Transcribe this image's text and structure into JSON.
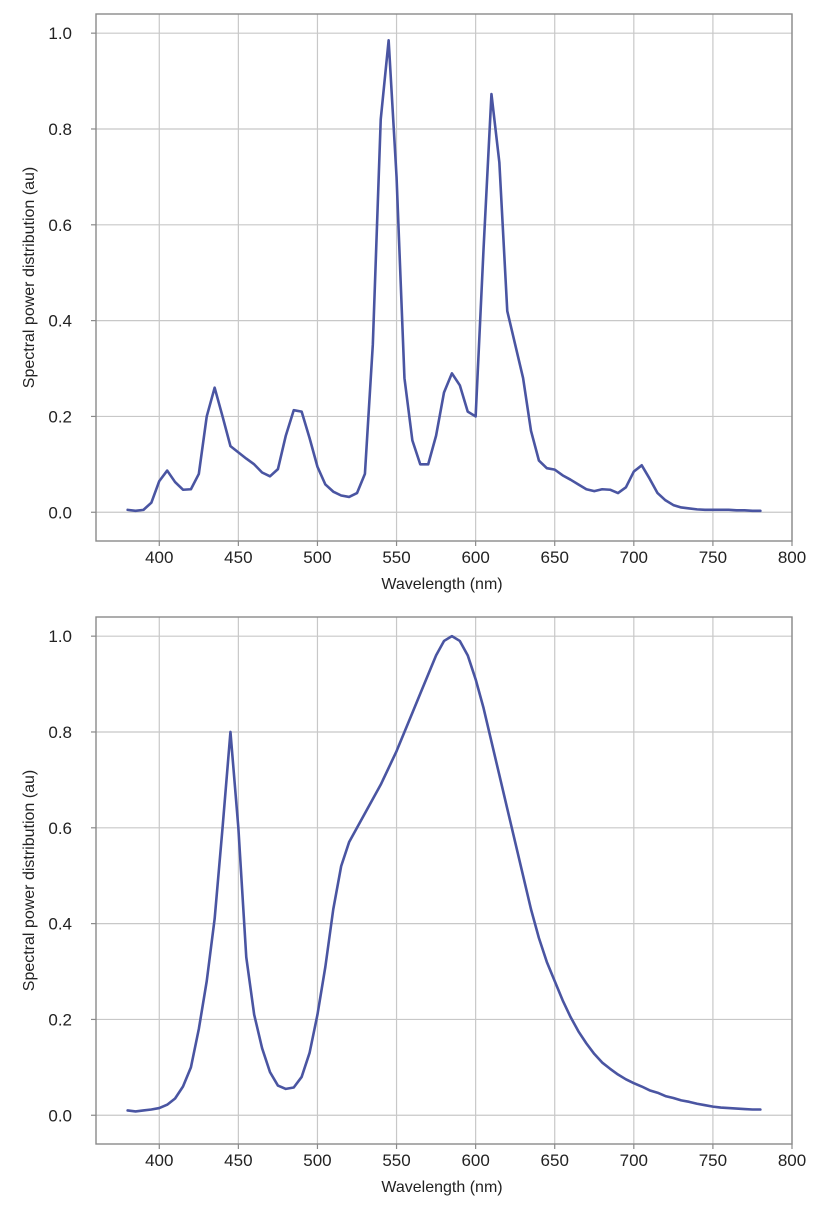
{
  "chart_data": [
    {
      "type": "line",
      "xlabel": "Wavelength (nm)",
      "ylabel": "Spectral power distribution (au)",
      "xlim": [
        360,
        800
      ],
      "ylim": [
        -0.06,
        1.04
      ],
      "xticks": [
        "400",
        "450",
        "500",
        "550",
        "600",
        "650",
        "700",
        "750",
        "800"
      ],
      "yticks": [
        "0.0",
        "0.2",
        "0.4",
        "0.6",
        "0.8",
        "1.0"
      ],
      "grid": true,
      "line_color": "#4a55a2",
      "series": [
        {
          "x": [
            380,
            385,
            390,
            395,
            400,
            405,
            410,
            415,
            420,
            425,
            430,
            435,
            440,
            445,
            450,
            455,
            460,
            465,
            470,
            475,
            480,
            485,
            490,
            495,
            500,
            505,
            510,
            515,
            520,
            525,
            530,
            535,
            540,
            545,
            550,
            555,
            560,
            565,
            570,
            575,
            580,
            585,
            590,
            595,
            600,
            605,
            610,
            615,
            620,
            625,
            630,
            635,
            640,
            645,
            650,
            655,
            660,
            665,
            670,
            675,
            680,
            685,
            690,
            695,
            700,
            705,
            710,
            715,
            720,
            725,
            730,
            735,
            740,
            745,
            750,
            755,
            760,
            765,
            770,
            775,
            780
          ],
          "y": [
            0.005,
            0.003,
            0.005,
            0.02,
            0.065,
            0.087,
            0.063,
            0.047,
            0.048,
            0.08,
            0.2,
            0.26,
            0.2,
            0.138,
            0.125,
            0.112,
            0.1,
            0.083,
            0.075,
            0.09,
            0.16,
            0.213,
            0.21,
            0.155,
            0.095,
            0.058,
            0.043,
            0.035,
            0.032,
            0.04,
            0.08,
            0.35,
            0.82,
            0.985,
            0.7,
            0.28,
            0.15,
            0.1,
            0.1,
            0.16,
            0.25,
            0.29,
            0.265,
            0.21,
            0.2,
            0.55,
            0.873,
            0.73,
            0.42,
            0.35,
            0.28,
            0.17,
            0.108,
            0.092,
            0.089,
            0.077,
            0.068,
            0.058,
            0.048,
            0.044,
            0.048,
            0.047,
            0.04,
            0.052,
            0.085,
            0.098,
            0.07,
            0.04,
            0.025,
            0.015,
            0.01,
            0.008,
            0.006,
            0.005,
            0.005,
            0.005,
            0.005,
            0.004,
            0.004,
            0.003,
            0.003
          ]
        }
      ]
    },
    {
      "type": "line",
      "xlabel": "Wavelength (nm)",
      "ylabel": "Spectral power distribution (au)",
      "xlim": [
        360,
        800
      ],
      "ylim": [
        -0.06,
        1.04
      ],
      "xticks": [
        "400",
        "450",
        "500",
        "550",
        "600",
        "650",
        "700",
        "750",
        "800"
      ],
      "yticks": [
        "0.0",
        "0.2",
        "0.4",
        "0.6",
        "0.8",
        "1.0"
      ],
      "grid": true,
      "line_color": "#4a55a2",
      "series": [
        {
          "x": [
            380,
            385,
            390,
            395,
            400,
            405,
            410,
            415,
            420,
            425,
            430,
            435,
            440,
            445,
            450,
            455,
            460,
            465,
            470,
            475,
            480,
            485,
            490,
            495,
            500,
            505,
            510,
            515,
            520,
            525,
            530,
            535,
            540,
            545,
            550,
            555,
            560,
            565,
            570,
            575,
            580,
            585,
            590,
            595,
            600,
            605,
            610,
            615,
            620,
            625,
            630,
            635,
            640,
            645,
            650,
            655,
            660,
            665,
            670,
            675,
            680,
            685,
            690,
            695,
            700,
            705,
            710,
            715,
            720,
            725,
            730,
            735,
            740,
            745,
            750,
            755,
            760,
            765,
            770,
            775,
            780
          ],
          "y": [
            0.01,
            0.008,
            0.01,
            0.012,
            0.015,
            0.022,
            0.035,
            0.06,
            0.1,
            0.18,
            0.28,
            0.41,
            0.6,
            0.8,
            0.6,
            0.33,
            0.21,
            0.14,
            0.09,
            0.062,
            0.055,
            0.058,
            0.08,
            0.13,
            0.21,
            0.31,
            0.43,
            0.52,
            0.57,
            0.6,
            0.63,
            0.66,
            0.69,
            0.725,
            0.76,
            0.8,
            0.84,
            0.88,
            0.92,
            0.96,
            0.99,
            1.0,
            0.99,
            0.96,
            0.91,
            0.85,
            0.78,
            0.71,
            0.64,
            0.57,
            0.5,
            0.43,
            0.37,
            0.32,
            0.28,
            0.24,
            0.205,
            0.175,
            0.15,
            0.128,
            0.11,
            0.097,
            0.085,
            0.075,
            0.067,
            0.06,
            0.052,
            0.047,
            0.04,
            0.036,
            0.031,
            0.028,
            0.024,
            0.021,
            0.018,
            0.016,
            0.015,
            0.014,
            0.013,
            0.012,
            0.012
          ]
        }
      ]
    }
  ]
}
